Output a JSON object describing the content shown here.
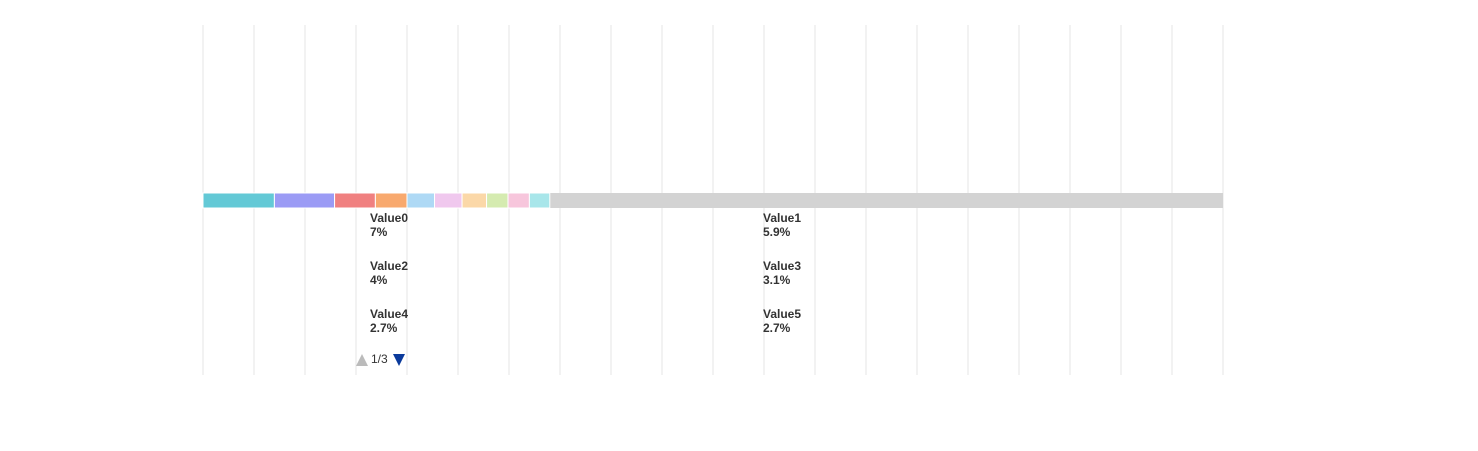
{
  "chart_data": {
    "type": "stacked-bar-horizontal",
    "categories": [
      "Value0",
      "Value1",
      "Value2",
      "Value3",
      "Value4",
      "Value5",
      null,
      null,
      null,
      null
    ],
    "values": [
      7,
      5.9,
      4,
      3.1,
      2.7,
      2.7,
      2.4,
      2.1,
      2.1,
      2
    ],
    "value_labels": [
      "7%",
      "5.9%",
      "4%",
      "3.1%",
      "2.7%",
      "2.7%",
      null,
      null,
      null,
      null
    ],
    "colors": [
      "#63c9d6",
      "#9b9bf5",
      "#f08080",
      "#f8a96e",
      "#aed9f5",
      "#f0c8ee",
      "#fbd8a8",
      "#d5ebb0",
      "#f7c6dc",
      "#a8e6ea"
    ],
    "xlim": [
      0,
      100
    ],
    "xticks": [
      0,
      5,
      10,
      15,
      20,
      25,
      30,
      35,
      40,
      45,
      50,
      55,
      60,
      65,
      70,
      75,
      80,
      85,
      90,
      95,
      100
    ],
    "grid": true,
    "legend_page": "1/3"
  }
}
